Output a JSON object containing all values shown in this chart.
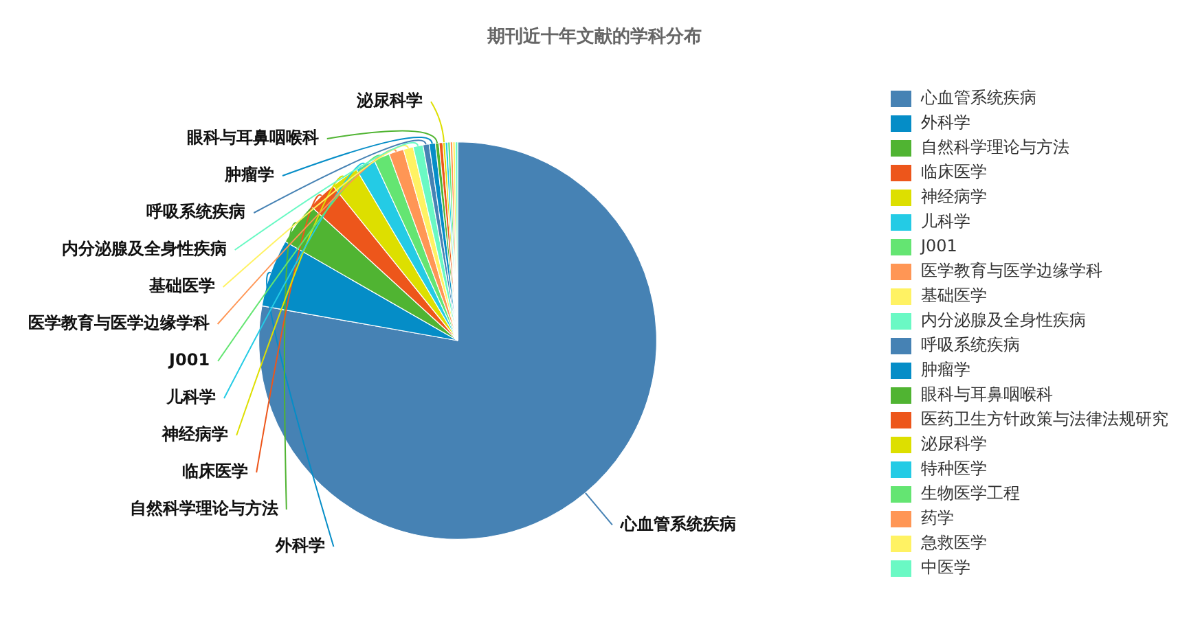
{
  "chart_data": {
    "type": "pie",
    "title": "期刊近十年文献的学科分布",
    "categories": [
      "心血管系统疾病",
      "外科学",
      "自然科学理论与方法",
      "临床医学",
      "神经病学",
      "儿科学",
      "J001",
      "医学教育与医学边缘学科",
      "基础医学",
      "内分泌腺及全身性疾病",
      "呼吸系统疾病",
      "肿瘤学",
      "眼科与耳鼻咽喉科",
      "医药卫生方针政策与法律法规研究",
      "泌尿科学",
      "特种医学",
      "生物医学工程",
      "药学",
      "急救医学",
      "中医学"
    ],
    "values": [
      77.8,
      5.5,
      3.5,
      2.4,
      2.3,
      1.6,
      1.3,
      1.2,
      0.8,
      0.8,
      0.5,
      0.5,
      0.3,
      0.3,
      0.2,
      0.2,
      0.2,
      0.2,
      0.2,
      0.2
    ],
    "colors": [
      "#4682b4",
      "#058dc7",
      "#50b432",
      "#ed561b",
      "#dddf00",
      "#24cbe5",
      "#64e572",
      "#ff9655",
      "#fff263",
      "#6af9c4",
      "#4682b4",
      "#058dc7",
      "#50b432",
      "#ed561b",
      "#dddf00",
      "#24cbe5",
      "#64e572",
      "#ff9655",
      "#fff263",
      "#6af9c4"
    ],
    "value_labels": [
      "心血管系统疾病",
      "外科学",
      "自然科学理论与方法",
      "临床医学",
      "神经病学",
      "儿科学",
      "J001",
      "医学教育与医学边缘学科",
      "基础医学",
      "内分泌腺及全身性疾病",
      "呼吸系统疾病",
      "肿瘤学",
      "眼科与耳鼻咽喉科",
      null,
      "泌尿科学",
      null,
      null,
      null,
      null,
      null
    ],
    "legend": "right"
  }
}
